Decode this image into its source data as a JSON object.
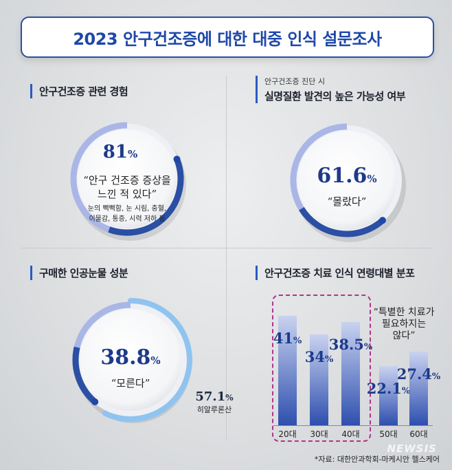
{
  "title": "2023 안구건조증에 대한 대중 인식 설문조사",
  "panel1": {
    "heading": "안구건조증 관련 경험",
    "value": "81",
    "unit": "%",
    "quote_line1": "안구 건조증 증상을",
    "quote_line2": "느낀 적 있다",
    "detail_line1": "눈의 뻑뻑함, 눈 시림, 충혈,",
    "detail_line2": "이물감, 통증, 시력 저하 등"
  },
  "panel2": {
    "subheading": "안구건조증 진단 시",
    "heading": "실명질환 발견의 높은 가능성 여부",
    "value": "61.6",
    "unit": "%",
    "quote": "몰랐다"
  },
  "panel3": {
    "heading": "구매한 인공눈물 성분",
    "value": "38.8",
    "unit": "%",
    "quote": "모른다",
    "outer_value": "57.1",
    "outer_unit": "%",
    "outer_label": "히알루론산"
  },
  "panel4": {
    "heading": "안구건조증 치료 인식 연령대별 분포",
    "note_line1": "특별한 치료가",
    "note_line2": "필요하지는",
    "note_line3": "않다",
    "unit": "%"
  },
  "colors": {
    "accent": "#2a59c2",
    "title_blue": "#1e47a8",
    "ring_light": "#aab6e6",
    "highlight_box": "#b0328f"
  },
  "chart_data": [
    {
      "type": "pie",
      "title": "안구건조증 관련 경험",
      "slices": [
        {
          "label": "안구 건조증 증상을 느낀 적 있다",
          "value": 81
        }
      ]
    },
    {
      "type": "pie",
      "title": "실명질환 발견의 높은 가능성 여부",
      "slices": [
        {
          "label": "몰랐다",
          "value": 61.6
        }
      ]
    },
    {
      "type": "pie",
      "title": "구매한 인공눈물 성분",
      "slices": [
        {
          "label": "모른다",
          "value": 38.8
        },
        {
          "label": "히알루론산",
          "value": 57.1
        }
      ]
    },
    {
      "type": "bar",
      "title": "안구건조증 치료 인식 연령대별 분포",
      "categories": [
        "20대",
        "30대",
        "40대",
        "50대",
        "60대"
      ],
      "values": [
        41,
        34,
        38.5,
        22.1,
        27.4
      ],
      "value_labels": [
        "41",
        "34",
        "38.5",
        "22.1",
        "27.4"
      ],
      "ylim": [
        0,
        45
      ]
    }
  ]
}
